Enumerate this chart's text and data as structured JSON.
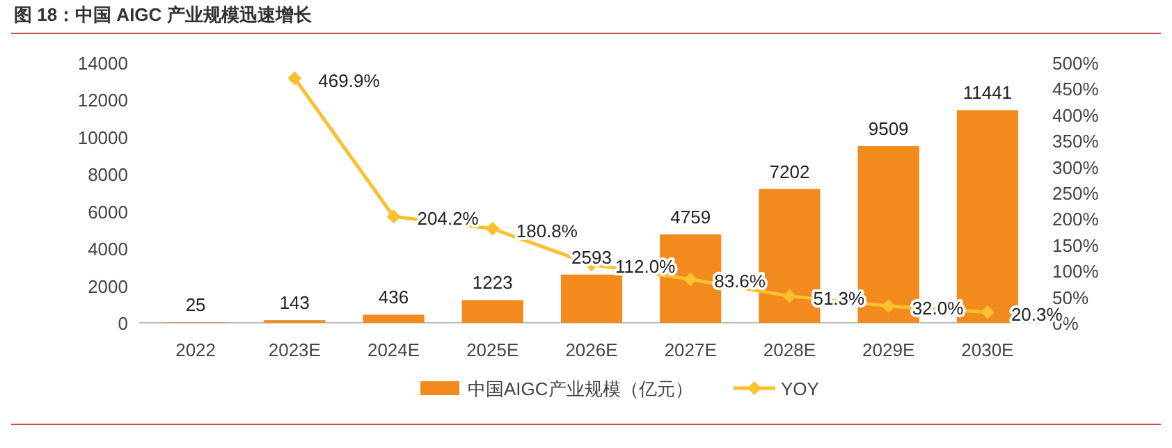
{
  "chart_data": {
    "type": "bar",
    "title": "图 18：中国 AIGC 产业规模迅速增长",
    "categories": [
      "2022",
      "2023E",
      "2024E",
      "2025E",
      "2026E",
      "2027E",
      "2028E",
      "2029E",
      "2030E"
    ],
    "series": [
      {
        "name": "中国AIGC产业规模（亿元）",
        "color": "#f28a1e",
        "values": [
          25,
          143,
          436,
          1223,
          2593,
          4759,
          7202,
          9509,
          11441
        ]
      },
      {
        "name": "YOY",
        "type": "line",
        "axis": "y2",
        "color": "#fac02e",
        "marker": "diamond",
        "values": [
          null,
          469.9,
          204.2,
          180.8,
          112.0,
          83.6,
          51.3,
          32.0,
          20.3
        ],
        "value_labels": [
          null,
          "469.9%",
          "204.2%",
          "180.8%",
          "112.0%",
          "83.6%",
          "51.3%",
          "32.0%",
          "20.3%"
        ]
      }
    ],
    "data_labels": true,
    "ylim": [
      0,
      14000
    ],
    "yticks": [
      0,
      2000,
      4000,
      6000,
      8000,
      10000,
      12000,
      14000
    ],
    "y2lim": [
      0,
      500
    ],
    "y2ticks": [
      {
        "value": 0,
        "label": "0%"
      },
      {
        "value": 50,
        "label": "50%"
      },
      {
        "value": 100,
        "label": "100%"
      },
      {
        "value": 150,
        "label": "150%"
      },
      {
        "value": 200,
        "label": "200%"
      },
      {
        "value": 250,
        "label": "250%"
      },
      {
        "value": 300,
        "label": "300%"
      },
      {
        "value": 350,
        "label": "350%"
      },
      {
        "value": 400,
        "label": "400%"
      },
      {
        "value": 450,
        "label": "450%"
      },
      {
        "value": 500,
        "label": "500%"
      }
    ],
    "grid": false,
    "legend": "bottom"
  }
}
